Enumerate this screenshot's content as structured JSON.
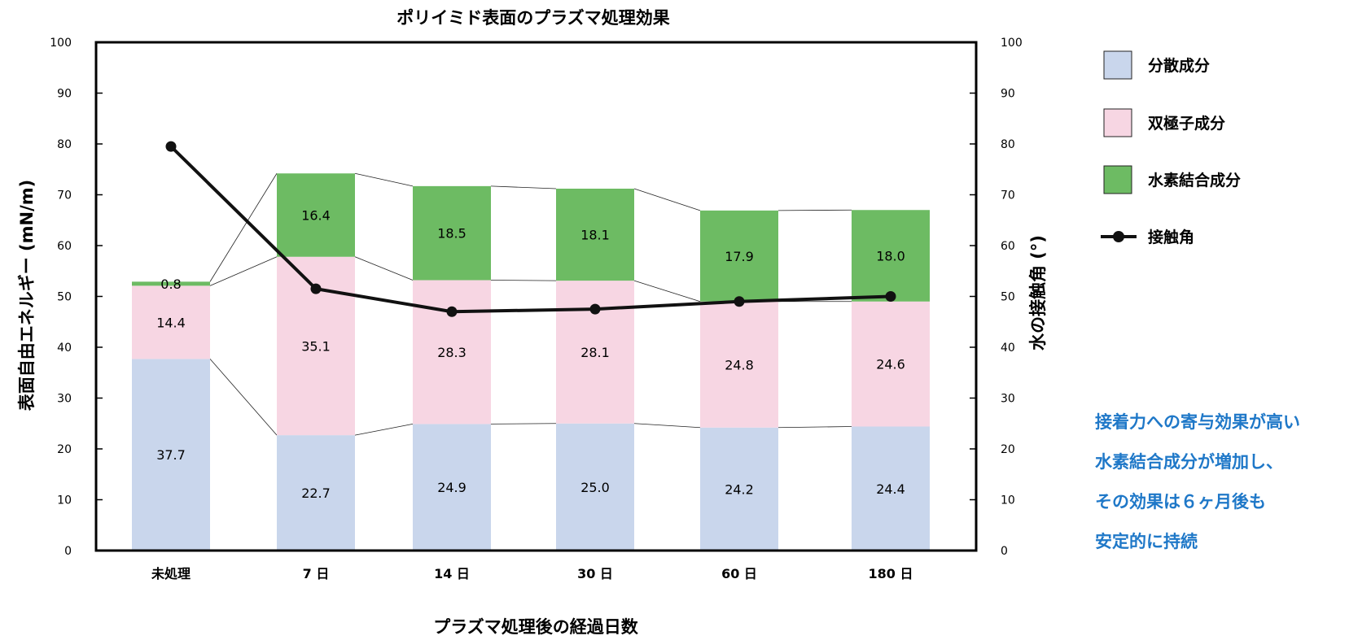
{
  "chart_data": {
    "type": "bar",
    "stacked": true,
    "title": "ポリイミド表面のプラズマ処理効果",
    "xlabel": "プラズマ処理後の経過日数",
    "ylabel": "表面自由エネルギー (mN/m)",
    "y2label": "水の接触角 (°)",
    "ylim": [
      0,
      100
    ],
    "y2lim": [
      0,
      100
    ],
    "yticks": [
      "0",
      "10",
      "20",
      "30",
      "40",
      "50",
      "60",
      "70",
      "80",
      "90",
      "100"
    ],
    "categories": [
      "未処理",
      "7 日",
      "14 日",
      "30 日",
      "60 日",
      "180 日"
    ],
    "series": [
      {
        "name": "分散成分",
        "color": "#c9d6ec",
        "values": [
          37.7,
          22.7,
          24.9,
          25.0,
          24.2,
          24.4
        ],
        "labels": [
          "37.7",
          "22.7",
          "24.9",
          "25.0",
          "24.2",
          "24.4"
        ]
      },
      {
        "name": "双極子成分",
        "color": "#f7d6e3",
        "values": [
          14.4,
          35.1,
          28.3,
          28.1,
          24.8,
          24.6
        ],
        "labels": [
          "14.4",
          "35.1",
          "28.3",
          "28.1",
          "24.8",
          "24.6"
        ]
      },
      {
        "name": "水素結合成分",
        "color": "#6dbb63",
        "values": [
          0.8,
          16.4,
          18.5,
          18.1,
          17.9,
          18.0
        ],
        "labels": [
          "0.8",
          "16.4",
          "18.5",
          "18.1",
          "17.9",
          "18.0"
        ]
      }
    ],
    "line_series": {
      "name": "接触角",
      "color": "#111111",
      "axis": "right",
      "values": [
        79.5,
        51.5,
        47.0,
        47.5,
        49.0,
        50.0
      ]
    },
    "legend_position": "right",
    "grid": false
  },
  "note": [
    "接着力への寄与効果が高い",
    "水素結合成分が増加し、",
    "その効果は６ヶ月後も",
    "安定的に持続"
  ]
}
